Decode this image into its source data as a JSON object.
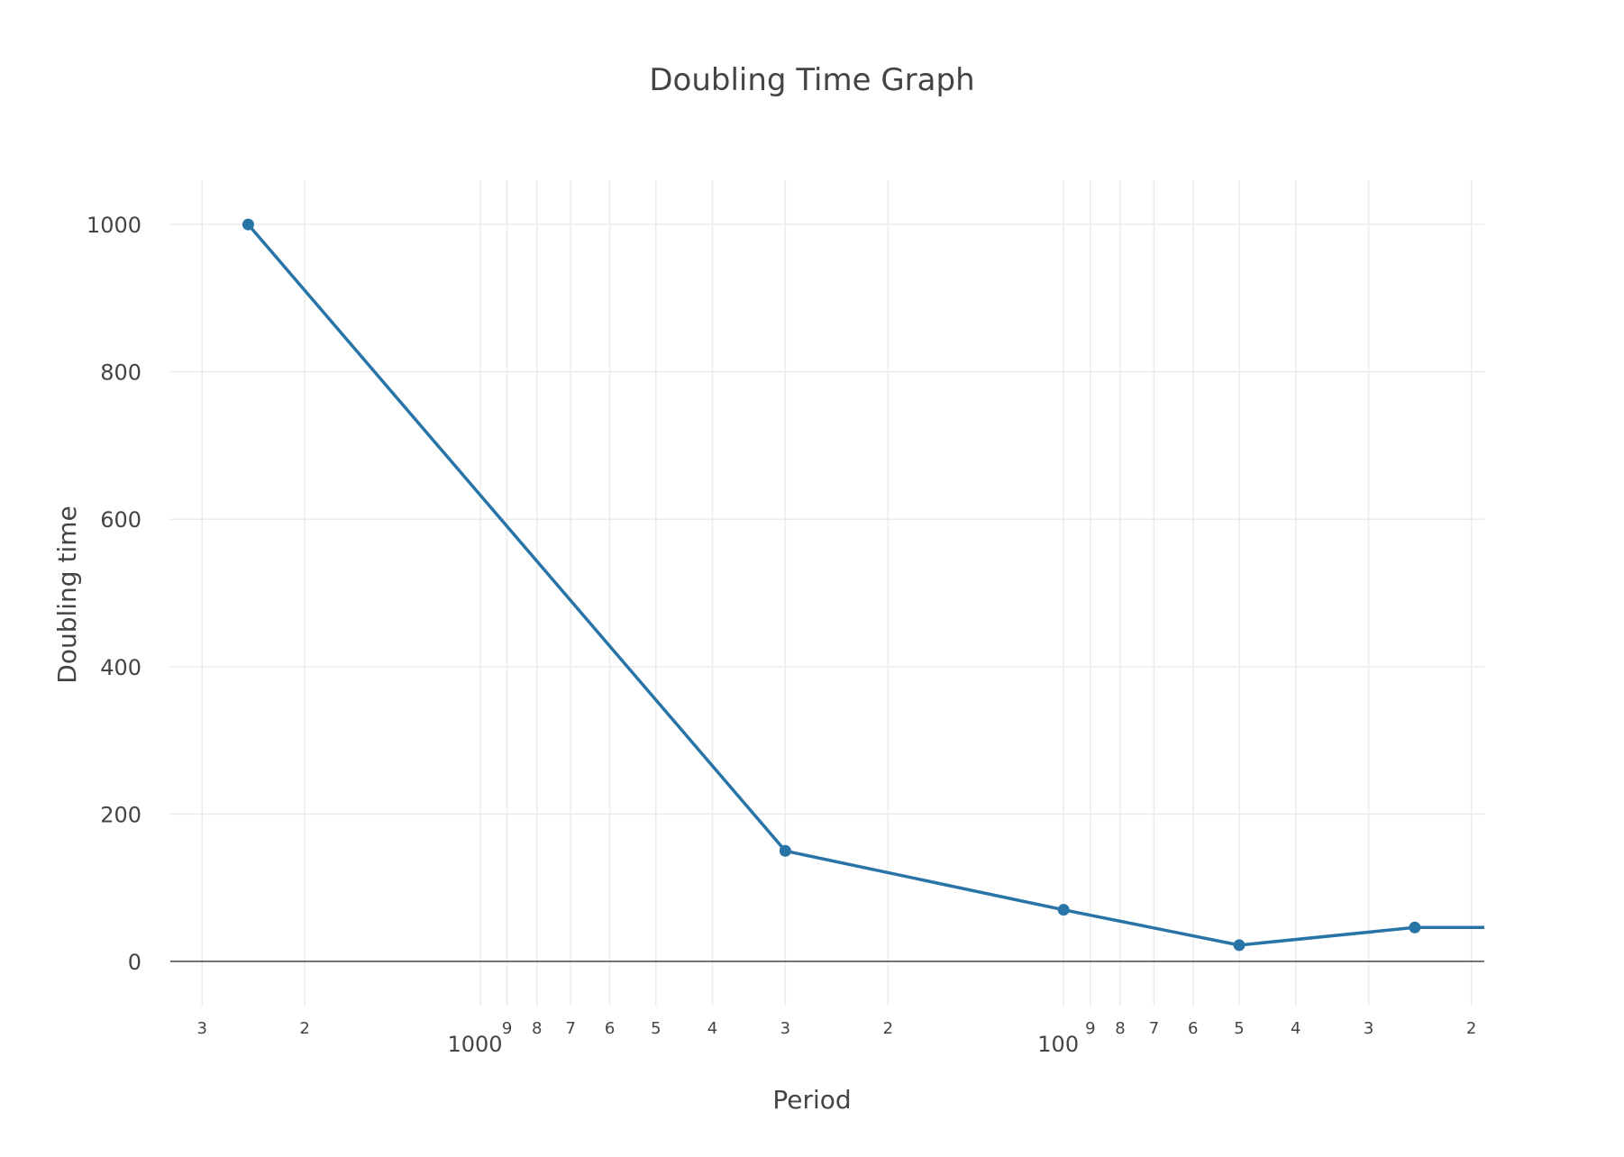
{
  "chart_data": {
    "type": "line",
    "title": "Doubling Time Graph",
    "xlabel": "Period",
    "ylabel": "Doubling time",
    "x_scale": "log",
    "x_axis_reversed": true,
    "x_range": [
      3400,
      19
    ],
    "y_range": [
      -60,
      1060
    ],
    "grid": true,
    "legend": "none",
    "line_color": "#2874A6",
    "zero_line_color": "#444444",
    "grid_color": "#ebebeb",
    "y_ticks": [
      {
        "value": 0,
        "label": "0"
      },
      {
        "value": 200,
        "label": "200"
      },
      {
        "value": 400,
        "label": "400"
      },
      {
        "value": 600,
        "label": "600"
      },
      {
        "value": 800,
        "label": "800"
      },
      {
        "value": 1000,
        "label": "1000"
      }
    ],
    "x_minor_ticks": [
      {
        "value": 3000,
        "label": "3"
      },
      {
        "value": 2000,
        "label": "2"
      },
      {
        "value": 900,
        "label": "9"
      },
      {
        "value": 800,
        "label": "8"
      },
      {
        "value": 700,
        "label": "7"
      },
      {
        "value": 600,
        "label": "6"
      },
      {
        "value": 500,
        "label": "5"
      },
      {
        "value": 400,
        "label": "4"
      },
      {
        "value": 300,
        "label": "3"
      },
      {
        "value": 200,
        "label": "2"
      },
      {
        "value": 90,
        "label": "9"
      },
      {
        "value": 80,
        "label": "8"
      },
      {
        "value": 70,
        "label": "7"
      },
      {
        "value": 60,
        "label": "6"
      },
      {
        "value": 50,
        "label": "5"
      },
      {
        "value": 40,
        "label": "4"
      },
      {
        "value": 30,
        "label": "3"
      },
      {
        "value": 20,
        "label": "2"
      }
    ],
    "x_major_ticks": [
      {
        "value": 1000,
        "label": "1000"
      },
      {
        "value": 100,
        "label": "100"
      }
    ],
    "series": [
      {
        "x": [
          2500,
          300,
          100,
          50,
          25,
          19
        ],
        "y": [
          1000,
          150,
          70,
          22,
          46,
          46
        ],
        "markers": [
          true,
          true,
          true,
          true,
          true,
          false
        ]
      }
    ]
  }
}
